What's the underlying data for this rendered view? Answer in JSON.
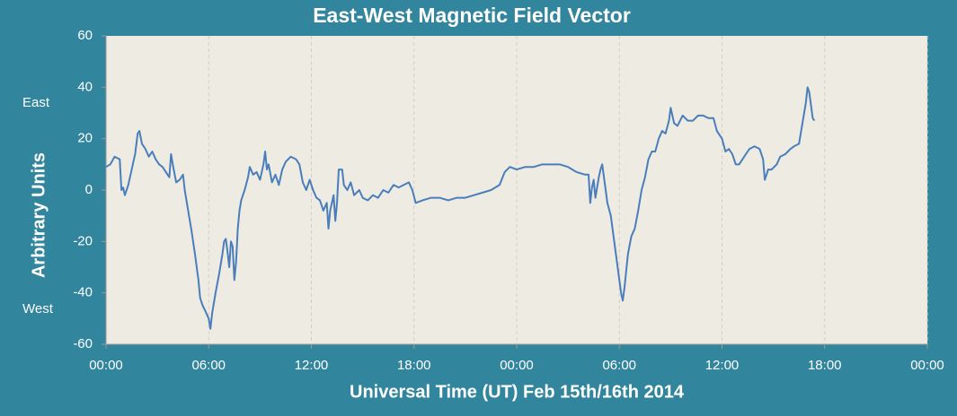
{
  "chart_data": {
    "type": "line",
    "title": "East-West Magnetic Field Vector",
    "x_label": "Universal Time (UT)  Feb  15th/16th 2014",
    "y_label": "Arbitrary Units",
    "annotations": [
      "East",
      "West"
    ],
    "x": [
      0,
      0.25,
      0.5,
      0.8,
      0.9,
      1.0,
      1.1,
      1.3,
      1.5,
      1.7,
      1.85,
      1.95,
      2.1,
      2.3,
      2.5,
      2.7,
      2.9,
      3.1,
      3.3,
      3.7,
      3.8,
      3.9,
      4.1,
      4.3,
      4.5,
      4.6,
      4.8,
      5.0,
      5.2,
      5.4,
      5.5,
      5.65,
      5.8,
      6.0,
      6.1,
      6.2,
      6.4,
      6.6,
      6.8,
      6.9,
      7.0,
      7.1,
      7.2,
      7.3,
      7.4,
      7.5,
      7.6,
      7.7,
      7.8,
      7.9,
      8.1,
      8.3,
      8.4,
      8.6,
      8.8,
      9.0,
      9.2,
      9.3,
      9.4,
      9.5,
      9.7,
      9.9,
      10.1,
      10.3,
      10.5,
      10.8,
      11.1,
      11.3,
      11.5,
      11.7,
      11.9,
      12.1,
      12.3,
      12.5,
      12.7,
      12.9,
      13.0,
      13.1,
      13.3,
      13.4,
      13.5,
      13.6,
      13.8,
      13.9,
      14.1,
      14.3,
      14.5,
      14.8,
      15.0,
      15.3,
      15.6,
      15.9,
      16.2,
      16.5,
      16.8,
      17.1,
      17.4,
      17.7,
      17.9,
      18.1,
      18.5,
      19.0,
      19.5,
      20.0,
      20.5,
      21.0,
      21.5,
      22.0,
      22.5,
      23.0,
      23.3,
      23.6,
      24.0,
      24.5,
      25.0,
      25.5,
      26.0,
      26.5,
      27.0,
      27.5,
      28.0,
      28.2,
      28.3,
      28.4,
      28.5,
      28.6,
      28.8,
      28.9,
      29.0,
      29.1,
      29.3,
      29.5,
      29.6,
      29.8,
      29.9,
      30.0,
      30.1,
      30.2,
      30.3,
      30.5,
      30.7,
      30.9,
      31.1,
      31.3,
      31.5,
      31.7,
      31.9,
      32.1,
      32.3,
      32.5,
      32.7,
      32.9,
      33.0,
      33.2,
      33.4,
      33.7,
      34.0,
      34.3,
      34.6,
      34.9,
      35.2,
      35.5,
      35.7,
      36.0,
      36.2,
      36.4,
      36.6,
      36.8,
      37.0,
      37.3,
      37.6,
      37.9,
      38.2,
      38.4,
      38.5,
      38.7,
      38.9,
      39.2,
      39.4,
      39.7,
      40.0,
      40.2,
      40.5,
      40.7,
      40.9,
      41.0,
      41.1,
      41.2,
      41.3,
      41.4
    ],
    "series": [
      {
        "color": "#4a7ebb",
        "values": [
          9,
          10,
          13,
          12,
          0,
          1,
          -2,
          2,
          8,
          14,
          22,
          23,
          18,
          16,
          13,
          15,
          12,
          10,
          9,
          5,
          14,
          10,
          3,
          4,
          6,
          0,
          -8,
          -16,
          -25,
          -35,
          -42,
          -45,
          -47,
          -50,
          -54,
          -48,
          -40,
          -33,
          -25,
          -20,
          -19,
          -24,
          -30,
          -20,
          -22,
          -35,
          -28,
          -15,
          -8,
          -4,
          0,
          5,
          9,
          6,
          7,
          4,
          10,
          15,
          8,
          10,
          3,
          6,
          2,
          8,
          11,
          13,
          12,
          10,
          3,
          0,
          4,
          0,
          -3,
          -4,
          -8,
          -5,
          -15,
          -8,
          -2,
          -12,
          -5,
          8,
          8,
          2,
          0,
          3,
          -2,
          0,
          -3,
          -4,
          -2,
          -3,
          0,
          -1,
          2,
          1,
          2,
          3,
          0,
          -5,
          -4,
          -3,
          -3,
          -4,
          -3,
          -3,
          -2,
          -1,
          0,
          2,
          7,
          9,
          8,
          9,
          9,
          10,
          10,
          10,
          9,
          7,
          6,
          6,
          -5,
          1,
          4,
          -3,
          5,
          8,
          10,
          5,
          -5,
          -10,
          -15,
          -25,
          -30,
          -35,
          -40,
          -43,
          -38,
          -25,
          -18,
          -15,
          -8,
          0,
          5,
          12,
          15,
          15,
          20,
          23,
          22,
          27,
          32,
          26,
          25,
          29,
          27,
          27,
          29,
          29,
          28,
          28,
          23,
          20,
          15,
          16,
          14,
          10,
          10,
          13,
          16,
          17,
          16,
          12,
          4,
          8,
          8,
          10,
          13,
          14,
          16,
          17,
          18,
          26,
          34,
          40,
          38,
          33,
          28,
          27
        ]
      }
    ],
    "xlim": [
      0,
      48
    ],
    "xticks": [
      {
        "value": 0,
        "label": "00:00"
      },
      {
        "value": 6,
        "label": "06:00"
      },
      {
        "value": 12,
        "label": "12:00"
      },
      {
        "value": 18,
        "label": "18:00"
      },
      {
        "value": 24,
        "label": "00:00"
      },
      {
        "value": 30,
        "label": "06:00"
      },
      {
        "value": 36,
        "label": "12:00"
      },
      {
        "value": 42,
        "label": "18:00"
      },
      {
        "value": 48,
        "label": "00:00"
      }
    ],
    "ylim": [
      -60,
      60
    ],
    "yticks": [
      -60,
      -40,
      -20,
      0,
      20,
      40,
      60
    ],
    "grid": "x"
  }
}
